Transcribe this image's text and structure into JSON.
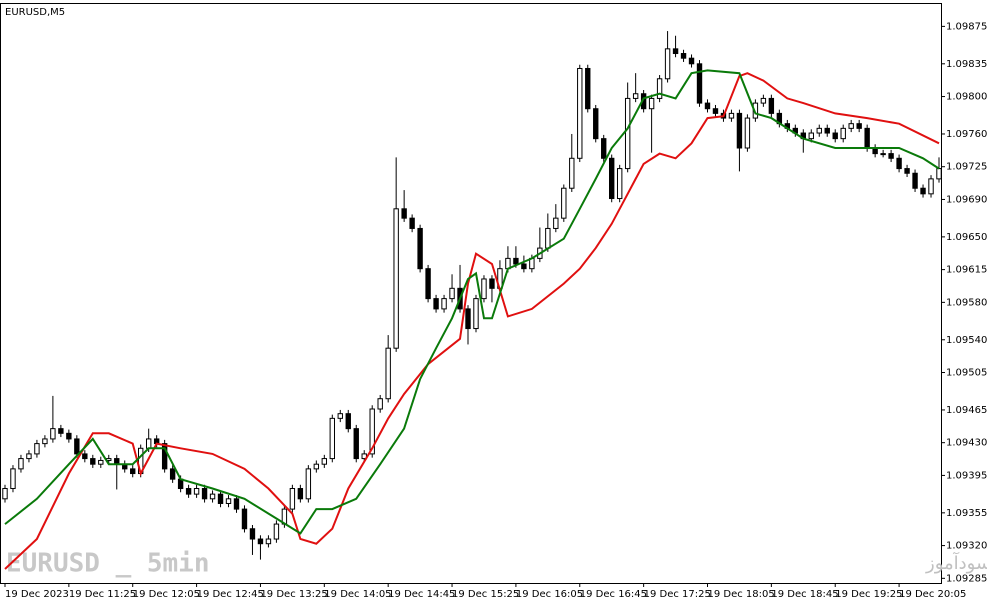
{
  "chart_data": {
    "type": "candlestick",
    "title": "EURUSD,M5",
    "annotations": [
      "EURUSD _ 5min",
      "انتشار در سایت سودآموز"
    ],
    "bull_color": "#ffffff",
    "bear_color": "#000000",
    "outline_color": "#000000",
    "xlim": [
      -0.5,
      117.25
    ],
    "ylim": [
      1.0928,
      1.099
    ],
    "xticks": [
      {
        "value": 0,
        "label": "19 Dec 2023"
      },
      {
        "value": 8,
        "label": "19 Dec 11:25"
      },
      {
        "value": 16,
        "label": "19 Dec 12:05"
      },
      {
        "value": 24,
        "label": "19 Dec 12:45"
      },
      {
        "value": 32,
        "label": "19 Dec 13:25"
      },
      {
        "value": 40,
        "label": "19 Dec 14:05"
      },
      {
        "value": 48,
        "label": "19 Dec 14:45"
      },
      {
        "value": 56,
        "label": "19 Dec 15:25"
      },
      {
        "value": 64,
        "label": "19 Dec 16:05"
      },
      {
        "value": 72,
        "label": "19 Dec 16:45"
      },
      {
        "value": 80,
        "label": "19 Dec 17:25"
      },
      {
        "value": 88,
        "label": "19 Dec 18:05"
      },
      {
        "value": 96,
        "label": "19 Dec 18:45"
      },
      {
        "value": 104,
        "label": "19 Dec 19:25"
      },
      {
        "value": 112,
        "label": "19 Dec 20:05"
      }
    ],
    "yticks": [
      1.09875,
      1.09835,
      {
        "value": 1.098,
        "label": "1.09800"
      },
      {
        "value": 1.0976,
        "label": "1.09760"
      },
      1.09725,
      {
        "value": 1.0969,
        "label": "1.09690"
      },
      {
        "value": 1.0965,
        "label": "1.09650"
      },
      1.09615,
      {
        "value": 1.0958,
        "label": "1.09580"
      },
      {
        "value": 1.0954,
        "label": "1.09540"
      },
      1.09505,
      1.09465,
      {
        "value": 1.0943,
        "label": "1.09430"
      },
      1.09395,
      1.09355,
      {
        "value": 1.0932,
        "label": "1.09320"
      },
      1.09285
    ],
    "open": [
      1.0937,
      1.09381,
      1.09402,
      1.09413,
      1.09418,
      1.09429,
      1.09434,
      1.09445,
      1.0944,
      1.09434,
      1.09418,
      1.09413,
      1.09407,
      1.09411,
      1.09413,
      1.09407,
      1.09402,
      1.09397,
      1.09424,
      1.09434,
      1.09429,
      1.09402,
      1.09391,
      1.09381,
      1.09375,
      1.09381,
      1.0937,
      1.09375,
      1.09365,
      1.0937,
      1.09359,
      1.09338,
      1.09327,
      1.09322,
      1.09327,
      1.09343,
      1.09359,
      1.09381,
      1.0937,
      1.09402,
      1.09407,
      1.09413,
      1.09456,
      1.09461,
      1.09445,
      1.09413,
      1.09418,
      1.09466,
      1.09477,
      1.09531,
      1.0968,
      1.0967,
      1.09659,
      1.09616,
      1.09584,
      1.09573,
      1.09584,
      1.09595,
      1.09573,
      1.09552,
      1.09584,
      1.09605,
      1.09595,
      1.09616,
      1.09627,
      1.09621,
      1.09616,
      1.09627,
      1.09638,
      1.09659,
      1.0967,
      1.09702,
      1.09734,
      1.0983,
      1.09787,
      1.09755,
      1.09734,
      1.09691,
      1.09723,
      1.09798,
      1.09803,
      1.09787,
      1.09798,
      1.09819,
      1.09851,
      1.09846,
      1.09841,
      1.09835,
      1.09793,
      1.09787,
      1.09782,
      1.09777,
      1.09782,
      1.09745,
      1.09777,
      1.09793,
      1.09798,
      1.09782,
      1.09771,
      1.09766,
      1.09761,
      1.09755,
      1.09761,
      1.09766,
      1.09761,
      1.09755,
      1.09766,
      1.09771,
      1.09766,
      1.09745,
      1.09739,
      1.09739,
      1.09734,
      1.09723,
      1.09718,
      1.09702,
      1.09696,
      1.09712
    ],
    "high": [
      1.09385,
      1.09406,
      1.09417,
      1.09422,
      1.09433,
      1.09438,
      1.0948,
      1.09449,
      1.09444,
      1.09438,
      1.09422,
      1.09417,
      1.09415,
      1.09417,
      1.09417,
      1.09411,
      1.09406,
      1.09428,
      1.09445,
      1.09438,
      1.09433,
      1.09406,
      1.09395,
      1.09385,
      1.09385,
      1.09385,
      1.09379,
      1.09379,
      1.09374,
      1.09374,
      1.09363,
      1.09342,
      1.09331,
      1.09331,
      1.09347,
      1.09363,
      1.09385,
      1.09385,
      1.09406,
      1.09411,
      1.09417,
      1.0946,
      1.09465,
      1.09465,
      1.09449,
      1.09422,
      1.0947,
      1.09481,
      1.09545,
      1.09735,
      1.097,
      1.09674,
      1.09663,
      1.0962,
      1.09588,
      1.09588,
      1.0961,
      1.0962,
      1.09577,
      1.09588,
      1.09609,
      1.09609,
      1.09625,
      1.0964,
      1.0964,
      1.0963,
      1.09631,
      1.0966,
      1.09675,
      1.09685,
      1.09706,
      1.0976,
      1.09834,
      1.09834,
      1.09791,
      1.09759,
      1.09738,
      1.09727,
      1.09815,
      1.09825,
      1.09807,
      1.09802,
      1.09823,
      1.0987,
      1.09865,
      1.0985,
      1.09845,
      1.09839,
      1.09797,
      1.09791,
      1.09786,
      1.09786,
      1.09786,
      1.09781,
      1.09797,
      1.09802,
      1.09802,
      1.09786,
      1.09775,
      1.0977,
      1.09765,
      1.09765,
      1.0977,
      1.0977,
      1.09765,
      1.0977,
      1.09775,
      1.09775,
      1.0977,
      1.09749,
      1.09743,
      1.09743,
      1.09738,
      1.09727,
      1.09722,
      1.09706,
      1.09716,
      1.09735
    ],
    "low": [
      1.09366,
      1.09377,
      1.09398,
      1.09409,
      1.09414,
      1.09425,
      1.0943,
      1.09436,
      1.0943,
      1.09414,
      1.09409,
      1.09403,
      1.09403,
      1.09407,
      1.0938,
      1.09398,
      1.09393,
      1.09393,
      1.0942,
      1.09425,
      1.09398,
      1.09387,
      1.09377,
      1.09371,
      1.09371,
      1.09366,
      1.09366,
      1.09361,
      1.09361,
      1.09355,
      1.09334,
      1.0931,
      1.09305,
      1.09318,
      1.09323,
      1.09339,
      1.09355,
      1.09366,
      1.09366,
      1.09398,
      1.09403,
      1.09409,
      1.09452,
      1.09441,
      1.09409,
      1.09409,
      1.09414,
      1.09462,
      1.09473,
      1.09527,
      1.09666,
      1.09655,
      1.09612,
      1.0958,
      1.09569,
      1.09569,
      1.0958,
      1.09569,
      1.09535,
      1.09548,
      1.0958,
      1.0958,
      1.09591,
      1.09612,
      1.09617,
      1.09612,
      1.09612,
      1.09623,
      1.09634,
      1.09655,
      1.09666,
      1.09698,
      1.0973,
      1.09783,
      1.09751,
      1.0973,
      1.09687,
      1.09687,
      1.09719,
      1.09794,
      1.09783,
      1.0974,
      1.09794,
      1.09815,
      1.09842,
      1.09837,
      1.09831,
      1.09789,
      1.09783,
      1.09778,
      1.09773,
      1.09773,
      1.0972,
      1.09741,
      1.09773,
      1.09789,
      1.09778,
      1.09767,
      1.09762,
      1.09757,
      1.0974,
      1.09751,
      1.09757,
      1.09757,
      1.09751,
      1.09751,
      1.09762,
      1.09762,
      1.09741,
      1.09735,
      1.09735,
      1.0973,
      1.09719,
      1.09714,
      1.09698,
      1.09692,
      1.09692,
      1.09708
    ],
    "close": [
      1.09381,
      1.09402,
      1.09413,
      1.09418,
      1.09429,
      1.09434,
      1.09445,
      1.0944,
      1.09434,
      1.09418,
      1.09413,
      1.09407,
      1.09411,
      1.09413,
      1.09407,
      1.09402,
      1.09397,
      1.09424,
      1.09434,
      1.09429,
      1.09402,
      1.09391,
      1.09381,
      1.09375,
      1.09381,
      1.0937,
      1.09375,
      1.09365,
      1.0937,
      1.09359,
      1.09338,
      1.09327,
      1.09322,
      1.09327,
      1.09343,
      1.09359,
      1.09381,
      1.0937,
      1.09402,
      1.09407,
      1.09413,
      1.09456,
      1.09461,
      1.09445,
      1.09413,
      1.09418,
      1.09466,
      1.09477,
      1.09531,
      1.0968,
      1.0967,
      1.09659,
      1.09616,
      1.09584,
      1.09573,
      1.09584,
      1.09595,
      1.09573,
      1.09552,
      1.09584,
      1.09605,
      1.09595,
      1.09616,
      1.09627,
      1.09621,
      1.09616,
      1.09627,
      1.09638,
      1.09659,
      1.0967,
      1.09702,
      1.09734,
      1.0983,
      1.09787,
      1.09755,
      1.09734,
      1.09691,
      1.09723,
      1.09798,
      1.09803,
      1.09787,
      1.09798,
      1.09819,
      1.09851,
      1.09846,
      1.09841,
      1.09835,
      1.09793,
      1.09787,
      1.09782,
      1.09777,
      1.09782,
      1.09745,
      1.09777,
      1.09793,
      1.09798,
      1.09782,
      1.09771,
      1.09766,
      1.09761,
      1.09755,
      1.09761,
      1.09766,
      1.09761,
      1.09755,
      1.09766,
      1.09771,
      1.09766,
      1.09745,
      1.09739,
      1.09739,
      1.09734,
      1.09723,
      1.09718,
      1.09702,
      1.09696,
      1.09712,
      1.09723
    ],
    "lines": [
      {
        "color": "#e01010",
        "x": [
          0,
          4,
          8,
          11,
          13,
          16,
          17,
          19,
          22,
          26,
          30,
          33,
          36,
          37,
          39,
          41,
          43,
          46,
          48,
          50,
          53,
          57,
          58,
          59,
          61,
          63,
          66,
          70,
          72,
          74,
          76,
          78,
          80,
          82,
          84,
          86,
          88,
          90,
          92,
          93,
          95,
          98,
          100,
          104,
          108,
          112,
          117
        ],
        "values": [
          1.09295,
          1.09327,
          1.09397,
          1.0944,
          1.0944,
          1.09429,
          1.09397,
          1.09429,
          1.09424,
          1.09418,
          1.09402,
          1.09381,
          1.09354,
          1.09327,
          1.09322,
          1.09338,
          1.09381,
          1.09424,
          1.09456,
          1.09482,
          1.09514,
          1.09541,
          1.096,
          1.09632,
          1.09621,
          1.09565,
          1.09573,
          1.096,
          1.09616,
          1.09638,
          1.09664,
          1.09696,
          1.09728,
          1.09739,
          1.09734,
          1.0975,
          1.09777,
          1.09779,
          1.09822,
          1.09825,
          1.09817,
          1.09798,
          1.09793,
          1.09782,
          1.09777,
          1.09771,
          1.0975
        ]
      },
      {
        "color": "#0a7a0a",
        "x": [
          0,
          4,
          8,
          11,
          13,
          16,
          18,
          20,
          22,
          26,
          30,
          34,
          37,
          39,
          41,
          44,
          47,
          50,
          52,
          54,
          56,
          57,
          58,
          59,
          60,
          61,
          63,
          66,
          70,
          72,
          74,
          76,
          78,
          80,
          82,
          84,
          86,
          88,
          92,
          94,
          96,
          100,
          104,
          108,
          112,
          115,
          117
        ],
        "values": [
          1.09343,
          1.0937,
          1.09407,
          1.09434,
          1.09407,
          1.09407,
          1.09424,
          1.09424,
          1.09391,
          1.09381,
          1.0937,
          1.09349,
          1.09333,
          1.09359,
          1.09359,
          1.0937,
          1.09407,
          1.09445,
          1.09498,
          1.09531,
          1.09563,
          1.09584,
          1.09605,
          1.09611,
          1.09563,
          1.09563,
          1.09616,
          1.09627,
          1.09648,
          1.0968,
          1.09712,
          1.09745,
          1.09766,
          1.09798,
          1.09803,
          1.09798,
          1.09825,
          1.09828,
          1.09825,
          1.09782,
          1.09777,
          1.09755,
          1.09745,
          1.09745,
          1.09745,
          1.09734,
          1.09723
        ]
      }
    ]
  }
}
